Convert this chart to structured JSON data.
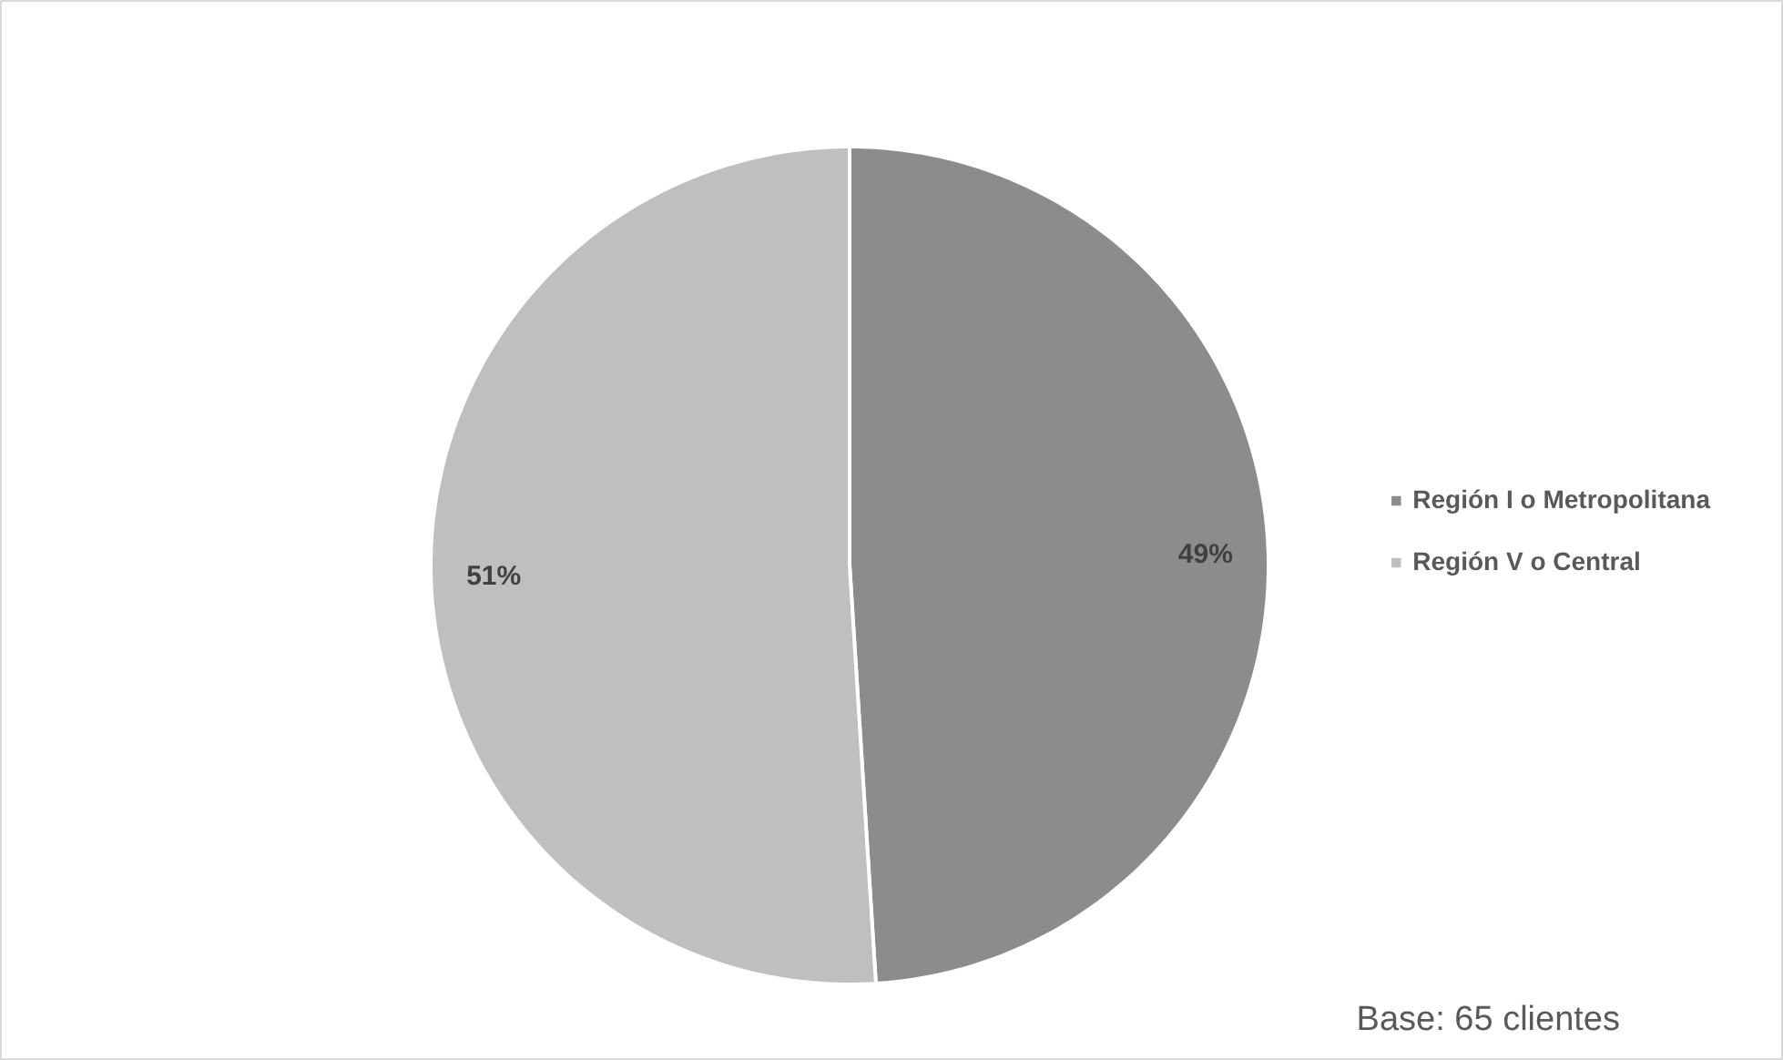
{
  "chart_data": {
    "type": "pie",
    "categories": [
      "Región I o Metropolitana",
      "Región V o Central"
    ],
    "values": [
      49,
      51
    ],
    "colors": [
      "#8c8c8c",
      "#bfbfbf"
    ],
    "value_labels": [
      "49%",
      "51%"
    ],
    "legend": "right",
    "annotations": [
      "Base: 65 clientes"
    ]
  }
}
